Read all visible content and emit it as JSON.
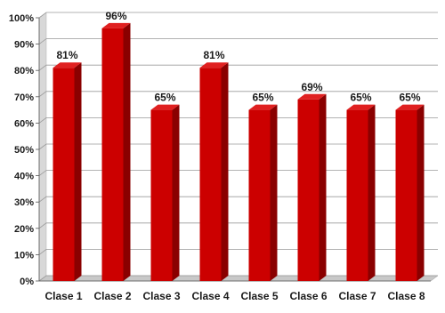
{
  "chart_data": {
    "type": "bar",
    "title": "",
    "xlabel": "",
    "ylabel": "",
    "categories": [
      "Clase 1",
      "Clase 2",
      "Clase 3",
      "Clase 4",
      "Clase 5",
      "Clase 6",
      "Clase 7",
      "Clase 8"
    ],
    "values": [
      81,
      96,
      65,
      81,
      65,
      69,
      65,
      65
    ],
    "data_labels": [
      "81%",
      "96%",
      "65%",
      "81%",
      "65%",
      "69%",
      "65%",
      "65%"
    ],
    "ylim": [
      0,
      100
    ],
    "y_ticks": [
      0,
      10,
      20,
      30,
      40,
      50,
      60,
      70,
      80,
      90,
      100
    ],
    "y_tick_labels": [
      "0%",
      "10%",
      "20%",
      "30%",
      "40%",
      "50%",
      "60%",
      "70%",
      "80%",
      "90%",
      "100%"
    ],
    "grid": true,
    "style": "3d-bar",
    "colors": {
      "bar_front": "#cc0000",
      "bar_side": "#8a0000",
      "bar_top": "#e02020",
      "grid": "#9a9a9a",
      "wall_side": "#d8d8d8",
      "floor": "#c8c8c8"
    }
  }
}
